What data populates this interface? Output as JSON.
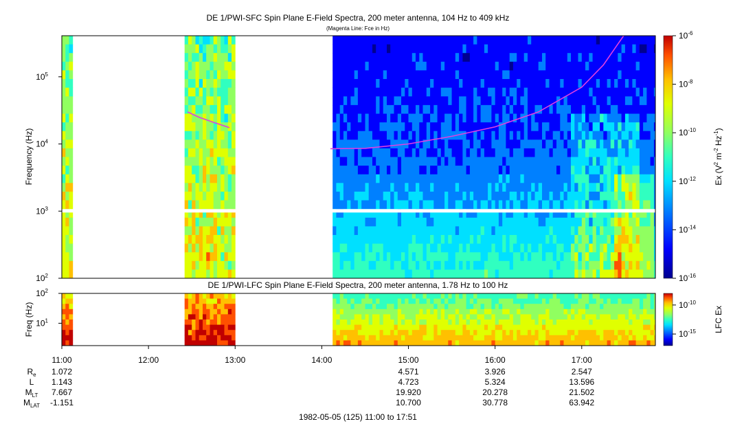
{
  "title": "DE 1/PWI-SFC  Spin Plane E-Field Spectra, 200 meter antenna, 104 Hz to 409 kHz",
  "subtitle": "(Magenta Line: Fce in Hz)",
  "lfc_title": "DE 1/PWI-LFC  Spin Plane E-Field Spectra, 200 meter antenna, 1.78 Hz to 100 Hz",
  "footer": "1982-05-05 (125) 11:00 to 17:51",
  "colors": {
    "magenta": "#e040e0",
    "palette": [
      "#000090",
      "#0000ff",
      "#0080ff",
      "#00e0ff",
      "#30ffc0",
      "#90ff60",
      "#e0ff00",
      "#ffc000",
      "#ff5000",
      "#c00000"
    ]
  },
  "chart_data": [
    {
      "type": "heatmap",
      "panel": "SFC",
      "ylabel": "Frequency (Hz)",
      "yscale": "log",
      "ylim": [
        100,
        409000
      ],
      "y_ticks": [
        {
          "value": 100,
          "base": "10",
          "exp": "2"
        },
        {
          "value": 1000,
          "base": "10",
          "exp": "3"
        },
        {
          "value": 10000,
          "base": "10",
          "exp": "4"
        },
        {
          "value": 100000,
          "base": "10",
          "exp": "5"
        }
      ],
      "x_start": "11:00",
      "x_end": "17:51",
      "x_ticks": [
        "11:00",
        "12:00",
        "13:00",
        "14:00",
        "15:00",
        "16:00",
        "17:00"
      ],
      "data_gaps": [
        [
          "11:07",
          "12:24"
        ],
        [
          "12:59",
          "14:06"
        ]
      ],
      "colorbar": {
        "label_base": "Ex (V",
        "label_sup1": "2",
        "label_mid": " m",
        "label_sup2": "-2",
        "label_mid2": " Hz",
        "label_sup3": "-1",
        "label_end": ")",
        "scale": "log",
        "range": [
          1e-16,
          1e-06
        ],
        "ticks": [
          {
            "value": 1e-16,
            "base": "10",
            "exp": "-16"
          },
          {
            "value": 1e-14,
            "base": "10",
            "exp": "-14"
          },
          {
            "value": 1e-12,
            "base": "10",
            "exp": "-12"
          },
          {
            "value": 1e-10,
            "base": "10",
            "exp": "-10"
          },
          {
            "value": 1e-08,
            "base": "10",
            "exp": "-8"
          },
          {
            "value": 1e-06,
            "base": "10",
            "exp": "-6"
          }
        ]
      },
      "fce_line": [
        {
          "segment": 1,
          "points": [
            [
              "12:27",
              30000
            ],
            [
              "12:35",
              25000
            ],
            [
              "12:45",
              21000
            ],
            [
              "12:56",
              17500
            ]
          ]
        },
        {
          "segment": 2,
          "points": [
            [
              "14:06",
              8500
            ],
            [
              "14:30",
              8600
            ],
            [
              "15:00",
              10000
            ],
            [
              "15:30",
              13000
            ],
            [
              "16:00",
              18000
            ],
            [
              "16:30",
              30000
            ],
            [
              "17:00",
              70000
            ],
            [
              "17:15",
              150000
            ],
            [
              "17:29",
              409000
            ]
          ]
        }
      ]
    },
    {
      "type": "heatmap",
      "panel": "LFC",
      "ylabel": "Freq (Hz)",
      "yscale": "log",
      "ylim": [
        1.78,
        100
      ],
      "y_ticks": [
        {
          "value": 10,
          "base": "10",
          "exp": "1"
        },
        {
          "value": 100,
          "base": "10",
          "exp": "2"
        }
      ],
      "colorbar": {
        "label": "LFC Ex",
        "scale": "log",
        "range": [
          1e-17,
          1e-08
        ],
        "ticks": [
          {
            "value": 1e-15,
            "base": "10",
            "exp": "-15"
          },
          {
            "value": 1e-10,
            "base": "10",
            "exp": "-10"
          }
        ]
      }
    }
  ],
  "ephemeris": {
    "rows": [
      {
        "label": "R",
        "sub": "e",
        "values": [
          {
            "time": "11:00",
            "value": "1.072"
          },
          {
            "time": "15:00",
            "value": "4.571"
          },
          {
            "time": "16:00",
            "value": "3.926"
          },
          {
            "time": "17:00",
            "value": "2.547"
          }
        ]
      },
      {
        "label": "L",
        "sub": "",
        "values": [
          {
            "time": "11:00",
            "value": "1.143"
          },
          {
            "time": "15:00",
            "value": "4.723"
          },
          {
            "time": "16:00",
            "value": "5.324"
          },
          {
            "time": "17:00",
            "value": "13.596"
          }
        ]
      },
      {
        "label": "M",
        "sub": "LT",
        "values": [
          {
            "time": "11:00",
            "value": "7.667"
          },
          {
            "time": "15:00",
            "value": "19.920"
          },
          {
            "time": "16:00",
            "value": "20.278"
          },
          {
            "time": "17:00",
            "value": "21.502"
          }
        ]
      },
      {
        "label": "M",
        "sub": "LAT",
        "values": [
          {
            "time": "11:00",
            "value": "-1.151"
          },
          {
            "time": "15:00",
            "value": "10.700"
          },
          {
            "time": "16:00",
            "value": "30.778"
          },
          {
            "time": "17:00",
            "value": "63.942"
          }
        ]
      }
    ]
  }
}
